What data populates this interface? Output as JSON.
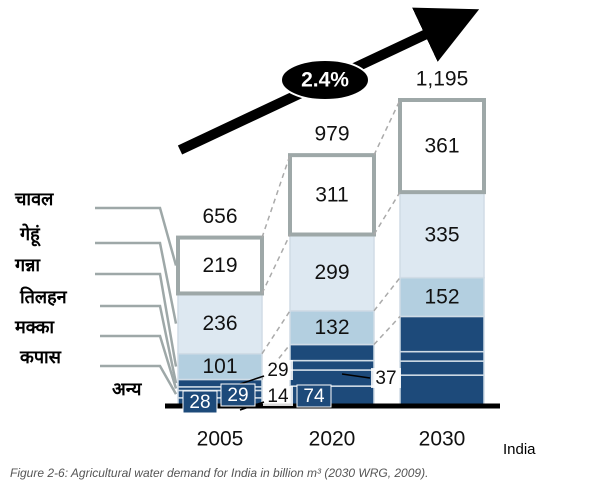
{
  "chart_data": {
    "type": "stacked_bar",
    "categories": [
      "2005",
      "2020",
      "2030"
    ],
    "series": [
      {
        "name": "चावल",
        "color": "#ffffff",
        "values": [
          219,
          311,
          361
        ],
        "value_labels": [
          "219",
          "311",
          "361"
        ]
      },
      {
        "name": "गेहूं",
        "color": "#dde8f1",
        "values": [
          236,
          299,
          335
        ],
        "value_labels": [
          "236",
          "299",
          "335"
        ]
      },
      {
        "name": "गन्ना",
        "color": "#b3cfe0",
        "values": [
          101,
          132,
          152
        ],
        "value_labels": [
          "101",
          "132",
          "152"
        ]
      },
      {
        "name": "तिलहन",
        "color": "#1d4a7a",
        "values": [
          29,
          63,
          138
        ],
        "value_labels": [
          "29",
          null,
          null
        ]
      },
      {
        "name": "मक्का",
        "color": "#1d4a7a",
        "values": [
          14,
          37,
          37
        ],
        "value_labels": [
          "14",
          "37",
          null
        ]
      },
      {
        "name": "कपास",
        "color": "#1d4a7a",
        "values": [
          29,
          63,
          55
        ],
        "value_labels": [
          "29",
          null,
          null
        ]
      },
      {
        "name": "अन्य",
        "color": "#1d4a7a",
        "values": [
          28,
          74,
          117
        ],
        "value_labels": [
          "28",
          "74",
          null
        ]
      }
    ],
    "totals": {
      "values": [
        656,
        979,
        1195
      ],
      "value_labels": [
        "656",
        "979",
        "1,195"
      ]
    },
    "annotation": "2.4%",
    "source_label": "India",
    "caption": "Figure 2-6: Agricultural water demand for India in billion m³ (2030 WRG, 2009)."
  }
}
